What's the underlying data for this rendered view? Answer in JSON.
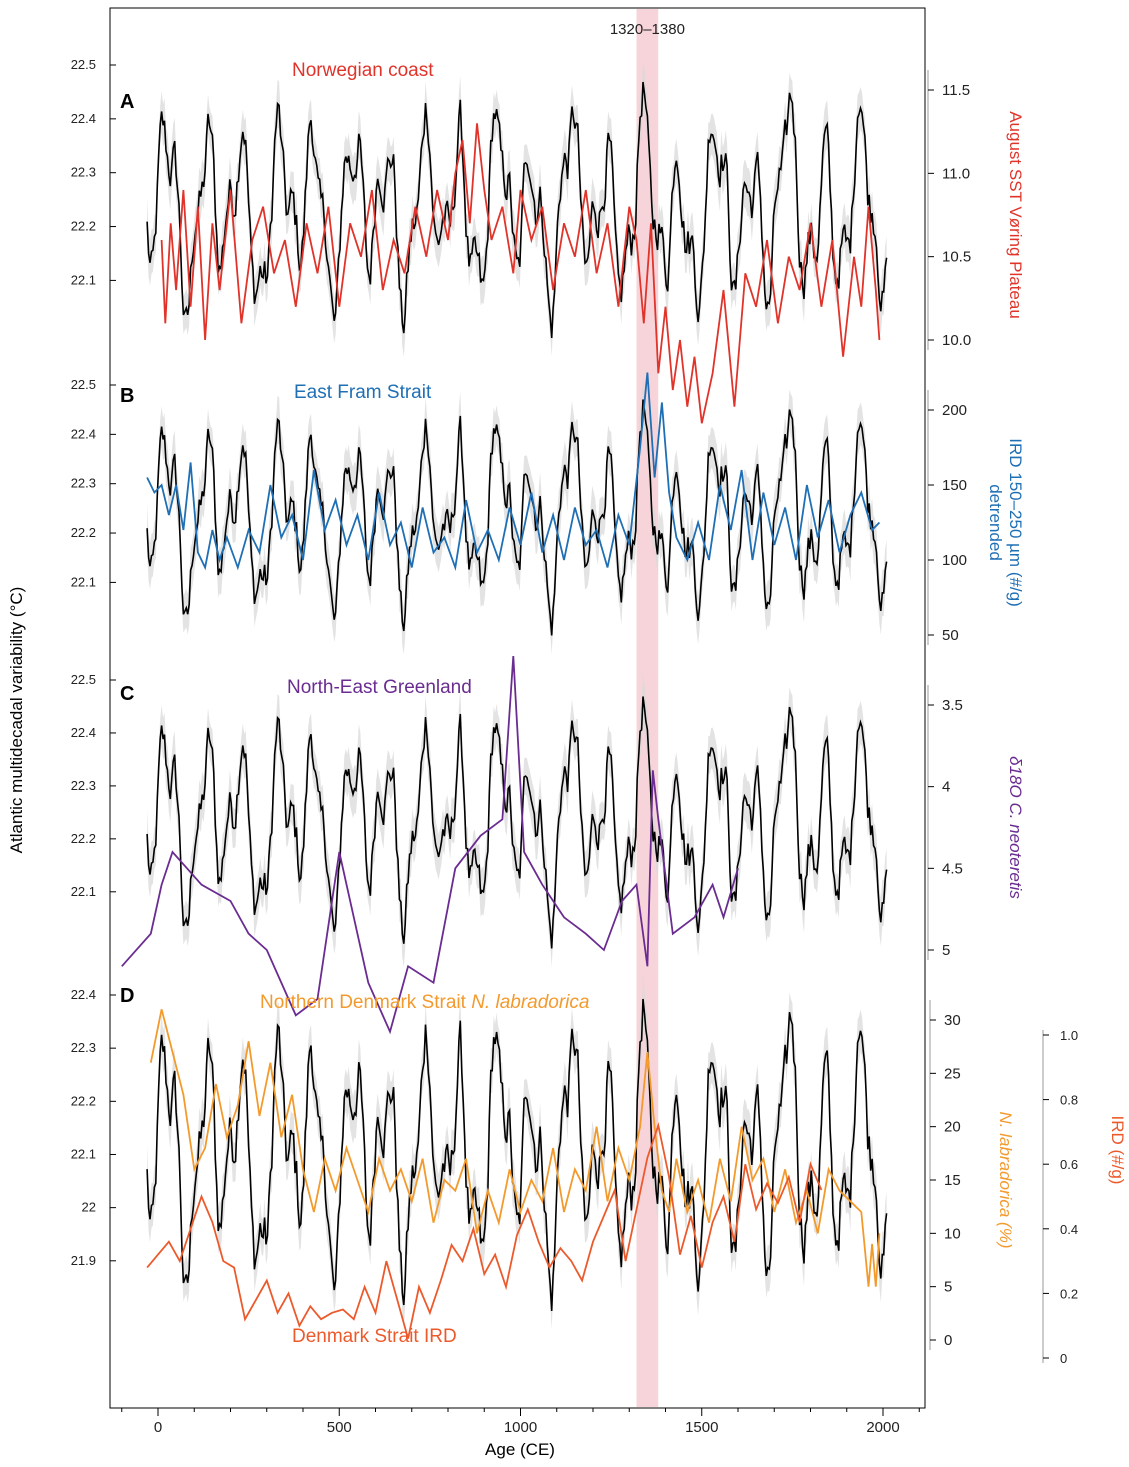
{
  "figure": {
    "x_axis_title": "Age (CE)",
    "left_axis_title": "Atlantic multidecadal variability (°C)",
    "highlight_label": "1320–1380",
    "highlight_range": [
      1320,
      1380
    ]
  },
  "chart_data": [
    {
      "panel": "A",
      "type": "line",
      "xlabel": "Age (CE)",
      "ylabel": "Atlantic multidecadal variability (°C)",
      "y_ticks": [
        "22.1",
        "22.2",
        "22.3",
        "22.4",
        "22.5"
      ],
      "title": "Norwegian coast",
      "right_axis_label": "August SST Vøring Plateau",
      "right_ticks": [
        "10.0",
        "10.5",
        "11.0",
        "11.5"
      ],
      "series": [
        {
          "color": "#e0342b",
          "axis": "right",
          "x": [
            10,
            20,
            35,
            50,
            70,
            90,
            110,
            130,
            150,
            170,
            200,
            230,
            260,
            290,
            320,
            350,
            380,
            410,
            440,
            470,
            500,
            530,
            560,
            590,
            620,
            650,
            680,
            710,
            740,
            770,
            800,
            820,
            840,
            860,
            880,
            900,
            920,
            950,
            980,
            1000,
            1030,
            1060,
            1090,
            1120,
            1150,
            1180,
            1210,
            1240,
            1270,
            1300,
            1320,
            1340,
            1360,
            1380,
            1400,
            1420,
            1440,
            1460,
            1480,
            1500,
            1530,
            1560,
            1590,
            1620,
            1650,
            1680,
            1710,
            1740,
            1770,
            1800,
            1830,
            1860,
            1890,
            1920,
            1940,
            1960,
            1980,
            1990
          ],
          "values": [
            10.6,
            10.1,
            10.7,
            10.3,
            10.9,
            10.2,
            10.8,
            10.0,
            10.7,
            10.3,
            10.9,
            10.1,
            10.6,
            10.8,
            10.4,
            10.6,
            10.2,
            10.7,
            10.4,
            10.8,
            10.2,
            10.7,
            10.5,
            10.9,
            10.3,
            10.6,
            10.4,
            10.8,
            10.5,
            10.9,
            10.6,
            11.0,
            11.2,
            10.7,
            11.3,
            10.9,
            10.6,
            10.8,
            10.4,
            10.9,
            10.6,
            10.8,
            10.3,
            10.7,
            10.5,
            10.9,
            10.4,
            10.7,
            10.2,
            10.8,
            10.6,
            10.1,
            10.7,
            9.8,
            10.2,
            9.7,
            10.0,
            9.6,
            9.9,
            9.5,
            9.8,
            10.3,
            9.6,
            10.4,
            10.2,
            10.6,
            10.1,
            10.5,
            10.3,
            10.7,
            10.2,
            10.6,
            9.9,
            10.5,
            10.2,
            10.8,
            10.3,
            10.0
          ]
        }
      ]
    },
    {
      "panel": "B",
      "type": "line",
      "xlabel": "Age (CE)",
      "ylabel": "Atlantic multidecadal variability (°C)",
      "y_ticks": [
        "22.1",
        "22.2",
        "22.3",
        "22.4",
        "22.5"
      ],
      "title": "East Fram Strait",
      "right_axis_label": "IRD 150–250 µm (#/g) detrended",
      "right_ticks": [
        "50",
        "100",
        "150",
        "200"
      ],
      "series": [
        {
          "color": "#1f6fb5",
          "axis": "right",
          "x": [
            -30,
            -10,
            10,
            30,
            50,
            70,
            90,
            110,
            130,
            150,
            170,
            190,
            220,
            250,
            280,
            310,
            340,
            370,
            400,
            430,
            460,
            490,
            520,
            550,
            580,
            610,
            640,
            670,
            700,
            730,
            760,
            790,
            820,
            850,
            880,
            910,
            940,
            970,
            1000,
            1030,
            1060,
            1090,
            1120,
            1150,
            1180,
            1210,
            1240,
            1270,
            1300,
            1330,
            1350,
            1370,
            1390,
            1410,
            1430,
            1460,
            1490,
            1520,
            1550,
            1580,
            1610,
            1640,
            1670,
            1700,
            1730,
            1760,
            1790,
            1820,
            1850,
            1880,
            1910,
            1940,
            1970,
            1990
          ],
          "values": [
            155,
            145,
            150,
            130,
            150,
            120,
            165,
            105,
            95,
            120,
            100,
            115,
            95,
            120,
            105,
            150,
            115,
            130,
            100,
            160,
            120,
            140,
            110,
            130,
            100,
            145,
            110,
            125,
            95,
            135,
            105,
            115,
            95,
            140,
            105,
            120,
            100,
            135,
            110,
            145,
            105,
            130,
            100,
            135,
            110,
            120,
            95,
            130,
            110,
            175,
            225,
            155,
            205,
            145,
            115,
            100,
            125,
            100,
            150,
            120,
            160,
            100,
            145,
            110,
            135,
            100,
            150,
            115,
            140,
            105,
            130,
            145,
            120,
            125
          ]
        }
      ]
    },
    {
      "panel": "C",
      "type": "line",
      "xlabel": "Age (CE)",
      "ylabel": "Atlantic multidecadal variability (°C)",
      "y_ticks": [
        "22.1",
        "22.2",
        "22.3",
        "22.4",
        "22.5"
      ],
      "title": "North-East Greenland",
      "right_axis_label": "δ18O C. neoteretis",
      "right_ticks": [
        "3.5",
        "4",
        "4.5",
        "5"
      ],
      "series": [
        {
          "color": "#6a2c91",
          "axis": "right",
          "x": [
            -100,
            -20,
            10,
            40,
            80,
            120,
            200,
            250,
            300,
            380,
            440,
            500,
            580,
            640,
            690,
            760,
            820,
            890,
            950,
            980,
            1010,
            1060,
            1120,
            1180,
            1230,
            1280,
            1320,
            1350,
            1365,
            1380,
            1420,
            1480,
            1530,
            1560,
            1600
          ],
          "values": [
            5.1,
            4.9,
            4.6,
            4.4,
            4.5,
            4.6,
            4.7,
            4.9,
            5.0,
            5.4,
            5.3,
            4.4,
            5.2,
            5.5,
            5.1,
            5.2,
            4.5,
            4.3,
            4.2,
            3.2,
            4.4,
            4.6,
            4.8,
            4.9,
            5.0,
            4.7,
            4.6,
            5.1,
            3.9,
            4.2,
            4.9,
            4.8,
            4.6,
            4.8,
            4.5
          ]
        }
      ]
    },
    {
      "panel": "D",
      "type": "line",
      "xlabel": "Age (CE)",
      "ylabel": "Atlantic multidecadal variability (°C)",
      "y_ticks": [
        "21.9",
        "22",
        "22.1",
        "22.2",
        "22.3",
        "22.4"
      ],
      "title": "Northern Denmark Strait N. labradorica",
      "title_main": "Northern Denmark Strait ",
      "title_italic": "N. labradorica",
      "secondary_title": "Denmark Strait IRD",
      "right_axis_label": "N. labradorica (%)",
      "right_ticks": [
        "0",
        "5",
        "10",
        "15",
        "20",
        "25",
        "30"
      ],
      "far_right_axis_label": "IRD (#/g)",
      "far_right_ticks": [
        "0",
        "0.2",
        "0.4",
        "0.6",
        "0.8",
        "1.0"
      ],
      "series": [
        {
          "color": "#f39a2d",
          "axis": "right",
          "x": [
            -20,
            10,
            40,
            70,
            100,
            130,
            160,
            190,
            220,
            250,
            280,
            310,
            340,
            370,
            400,
            430,
            460,
            490,
            520,
            550,
            580,
            610,
            640,
            670,
            700,
            730,
            760,
            790,
            820,
            850,
            880,
            910,
            940,
            970,
            1000,
            1030,
            1060,
            1090,
            1120,
            1150,
            1180,
            1210,
            1240,
            1270,
            1300,
            1330,
            1350,
            1370,
            1390,
            1410,
            1430,
            1460,
            1490,
            1520,
            1550,
            1580,
            1610,
            1640,
            1670,
            1700,
            1730,
            1760,
            1790,
            1820,
            1850,
            1880,
            1910,
            1940,
            1960,
            1970,
            1980,
            1990
          ],
          "values": [
            26,
            31,
            27,
            23,
            16,
            18,
            24,
            19,
            22,
            28,
            21,
            26,
            19,
            23,
            16,
            12,
            17,
            14,
            18,
            15,
            12,
            17,
            14,
            16,
            13,
            17,
            11,
            15,
            14,
            17,
            10,
            14,
            11,
            16,
            12,
            15,
            13,
            18,
            12,
            16,
            14,
            20,
            13,
            18,
            15,
            20,
            27,
            20,
            14,
            12,
            17,
            12,
            15,
            11,
            17,
            13,
            20,
            15,
            17,
            12,
            16,
            11,
            14,
            10,
            16,
            14,
            13,
            12,
            5,
            9,
            5,
            10
          ]
        },
        {
          "color": "#ec5a2c",
          "axis": "far_right",
          "x": [
            -30,
            0,
            30,
            60,
            90,
            120,
            150,
            180,
            210,
            240,
            270,
            300,
            330,
            360,
            390,
            420,
            450,
            480,
            510,
            540,
            570,
            600,
            630,
            660,
            690,
            720,
            750,
            780,
            810,
            840,
            870,
            900,
            930,
            960,
            990,
            1020,
            1050,
            1080,
            1110,
            1140,
            1170,
            1200,
            1230,
            1260,
            1290,
            1320,
            1350,
            1380,
            1410,
            1440,
            1470,
            1500,
            1530,
            1560,
            1590,
            1620,
            1650,
            1680,
            1710,
            1740,
            1770,
            1800,
            1830
          ],
          "values": [
            0.28,
            0.32,
            0.36,
            0.3,
            0.4,
            0.5,
            0.42,
            0.3,
            0.28,
            0.12,
            0.18,
            0.24,
            0.14,
            0.2,
            0.1,
            0.16,
            0.12,
            0.14,
            0.15,
            0.12,
            0.22,
            0.14,
            0.3,
            0.18,
            0.06,
            0.22,
            0.14,
            0.24,
            0.35,
            0.3,
            0.4,
            0.26,
            0.32,
            0.22,
            0.38,
            0.46,
            0.36,
            0.28,
            0.34,
            0.3,
            0.24,
            0.36,
            0.44,
            0.52,
            0.3,
            0.46,
            0.62,
            0.72,
            0.56,
            0.32,
            0.44,
            0.28,
            0.42,
            0.5,
            0.36,
            0.6,
            0.46,
            0.54,
            0.48,
            0.56,
            0.42,
            0.6,
            0.52
          ]
        }
      ]
    }
  ],
  "colors": {
    "amv": "#000000",
    "envelope": "#d9d9d9",
    "highlight": "#f4c5cc"
  },
  "x_axis": {
    "range": [
      -120,
      2120
    ],
    "ticks": [
      "0",
      "500",
      "1000",
      "1500",
      "2000"
    ]
  }
}
